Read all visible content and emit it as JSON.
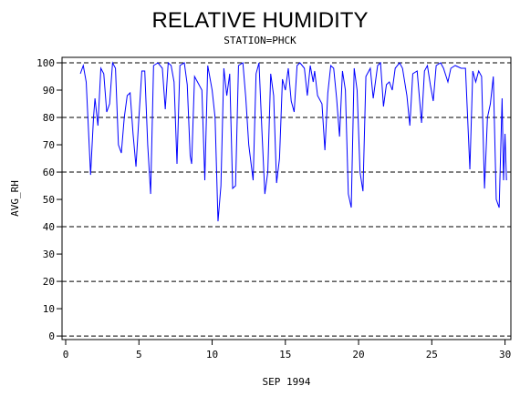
{
  "chart_data": {
    "type": "line",
    "title": "RELATIVE HUMIDITY",
    "subtitle": "STATION=PHCK",
    "x_label": "SEP 1994",
    "y_label": "AVG_RH",
    "xlim": [
      -0.25,
      30.4
    ],
    "ylim": [
      -1.3,
      102
    ],
    "xticks": [
      0,
      5,
      10,
      15,
      20,
      25,
      30
    ],
    "yticks": [
      0,
      10,
      20,
      30,
      40,
      50,
      60,
      70,
      80,
      90,
      100
    ],
    "reference_lines": [
      0,
      20,
      40,
      60,
      80,
      100
    ],
    "series": [
      {
        "color": "#0000ff",
        "x": [
          1.0,
          1.2,
          1.4,
          1.7,
          1.9,
          2.0,
          2.2,
          2.4,
          2.6,
          2.8,
          3.0,
          3.2,
          3.4,
          3.6,
          3.8,
          4.0,
          4.2,
          4.4,
          4.6,
          4.8,
          5.0,
          5.2,
          5.4,
          5.6,
          5.8,
          6.0,
          6.3,
          6.6,
          6.8,
          7.0,
          7.2,
          7.4,
          7.6,
          7.8,
          8.1,
          8.3,
          8.5,
          8.6,
          8.8,
          9.1,
          9.3,
          9.5,
          9.7,
          10.0,
          10.2,
          10.4,
          10.6,
          10.8,
          11.0,
          11.2,
          11.4,
          11.6,
          11.8,
          12.1,
          12.3,
          12.5,
          12.8,
          13.0,
          13.2,
          13.4,
          13.6,
          13.8,
          14.0,
          14.2,
          14.4,
          14.6,
          14.8,
          15.0,
          15.2,
          15.4,
          15.6,
          15.8,
          16.0,
          16.3,
          16.5,
          16.7,
          16.9,
          17.0,
          17.2,
          17.5,
          17.7,
          17.9,
          18.1,
          18.3,
          18.5,
          18.7,
          18.9,
          19.1,
          19.3,
          19.5,
          19.7,
          19.9,
          20.1,
          20.3,
          20.5,
          20.8,
          21.0,
          21.3,
          21.5,
          21.7,
          21.9,
          22.1,
          22.3,
          22.5,
          22.8,
          23.0,
          23.3,
          23.5,
          23.7,
          24.0,
          24.3,
          24.5,
          24.7,
          24.9,
          25.1,
          25.3,
          25.6,
          25.8,
          26.1,
          26.3,
          26.6,
          27.0,
          27.3,
          27.6,
          27.8,
          28.0,
          28.2,
          28.4,
          28.6,
          28.8,
          29.0,
          29.2,
          29.4,
          29.6,
          29.8,
          29.9,
          30.0,
          30.1
        ],
        "values": [
          96,
          99,
          93,
          59,
          80,
          87,
          77,
          98,
          96,
          82,
          85,
          100,
          98,
          70,
          67,
          80,
          88,
          89,
          74,
          62,
          80,
          97,
          97,
          70,
          52,
          99,
          100,
          98,
          83,
          100,
          99,
          93,
          63,
          99,
          100,
          92,
          66,
          63,
          95,
          92,
          90,
          57,
          99,
          90,
          80,
          42,
          55,
          98,
          88,
          96,
          54,
          55,
          99,
          100,
          87,
          70,
          57,
          96,
          100,
          75,
          52,
          60,
          96,
          88,
          56,
          65,
          94,
          90,
          98,
          86,
          82,
          99,
          100,
          98,
          88,
          99,
          93,
          97,
          88,
          85,
          68,
          89,
          99,
          98,
          87,
          73,
          97,
          90,
          52,
          47,
          98,
          90,
          60,
          53,
          95,
          98,
          87,
          99,
          100,
          84,
          92,
          93,
          90,
          98,
          100,
          98,
          88,
          77,
          96,
          97,
          78,
          97,
          99,
          92,
          86,
          99,
          100,
          98,
          93,
          98,
          99,
          98,
          98,
          61,
          97,
          93,
          97,
          95,
          54,
          80,
          85,
          95,
          50,
          47,
          87,
          57,
          74,
          57
        ]
      }
    ]
  }
}
